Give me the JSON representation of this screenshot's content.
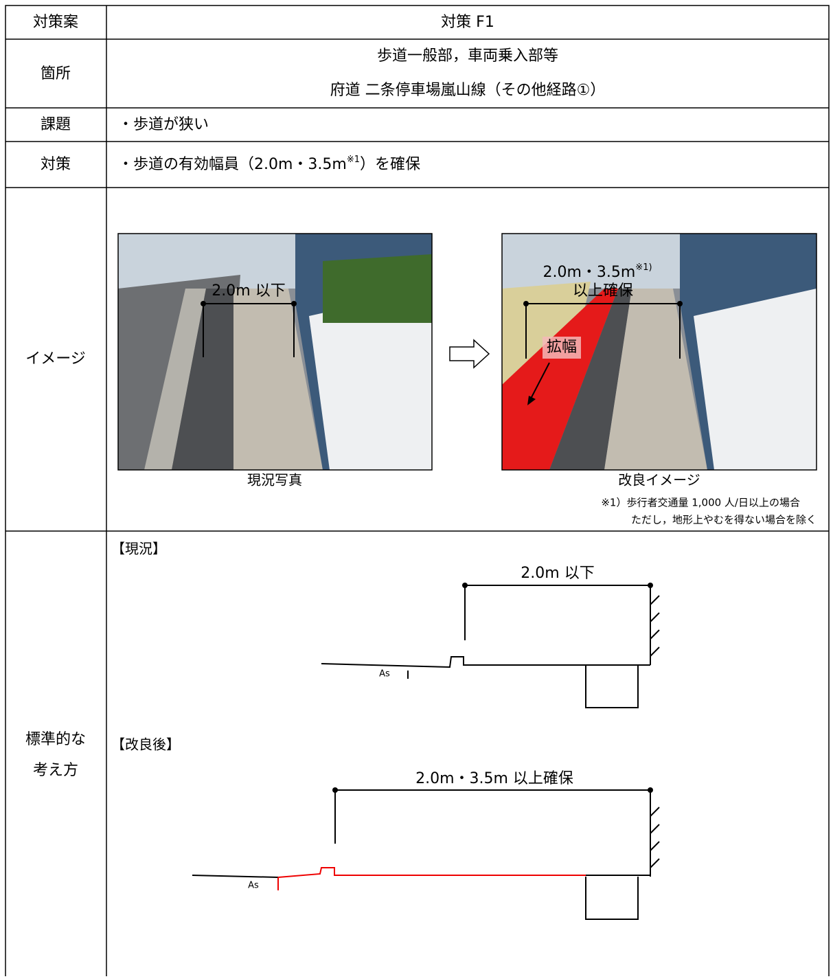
{
  "header": {
    "label": "対策案",
    "value": "対策 F1"
  },
  "location": {
    "label": "箇所",
    "lines": [
      "歩道一般部，車両乗入部等",
      "府道 二条停車場嵐山線（その他経路①）"
    ]
  },
  "issue": {
    "label": "課題",
    "text": "・歩道が狭い"
  },
  "measure": {
    "label": "対策",
    "text_before": "・歩道の有効幅員（2.0m・3.5m",
    "sup": "※1",
    "text_after": "）を確保"
  },
  "image": {
    "label": "イメージ",
    "photo_current": {
      "dimension": "2.0m 以下",
      "caption": "現況写真"
    },
    "photo_improved": {
      "dimension_line1": "2.0m・3.5m",
      "dimension_sup": "※1)",
      "dimension_line2": "以上確保",
      "widen": "拡幅",
      "caption": "改良イメージ"
    },
    "notes": [
      "※1）歩行者交通量 1,000 人/日以上の場合",
      "ただし，地形上やむを得ない場合を除く"
    ]
  },
  "standard": {
    "label_lines": [
      "標準的な",
      "考え方"
    ],
    "current": {
      "heading": "【現況】",
      "dimension": "2.0m 以下",
      "pavement": "As"
    },
    "improved": {
      "heading": "【改良後】",
      "dimension": "2.0m・3.5m 以上確保",
      "pavement": "As"
    }
  }
}
